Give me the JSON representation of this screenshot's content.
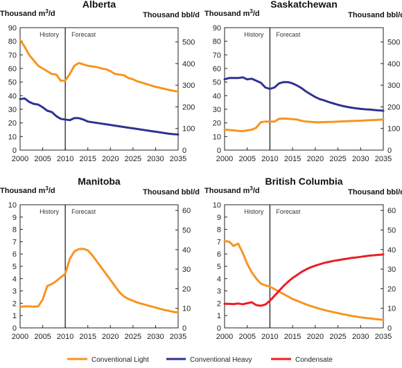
{
  "legend": [
    {
      "name": "Conventional Light",
      "color": "#f7941d"
    },
    {
      "name": "Conventional Heavy",
      "color": "#2e3192"
    },
    {
      "name": "Condensate",
      "color": "#ed1c24"
    }
  ],
  "colors": {
    "light": "#f7941d",
    "heavy": "#2e3192",
    "condensate": "#ed1c24"
  },
  "chart_data": [
    {
      "type": "line",
      "title": "Alberta",
      "left_unit": "Thousand m3/d",
      "right_unit": "Thousand bbl/d",
      "history_label": "History",
      "forecast_label": "Forecast",
      "divider_year": 2010,
      "xlim": [
        2000,
        2035
      ],
      "x_ticks": [
        2000,
        2005,
        2010,
        2015,
        2020,
        2025,
        2030,
        2035
      ],
      "ylim_left": [
        0,
        90
      ],
      "y_ticks_left": [
        0,
        10,
        20,
        30,
        40,
        50,
        60,
        70,
        80,
        90
      ],
      "ylim_right": [
        0,
        566
      ],
      "y_ticks_right": [
        0,
        100,
        200,
        300,
        400,
        500
      ],
      "series": [
        {
          "name": "Conventional Light",
          "color": "#f7941d",
          "x": [
            2000,
            2001,
            2002,
            2003,
            2004,
            2005,
            2006,
            2007,
            2008,
            2009,
            2010,
            2011,
            2012,
            2013,
            2014,
            2015,
            2016,
            2017,
            2018,
            2019,
            2020,
            2021,
            2022,
            2023,
            2024,
            2025,
            2026,
            2027,
            2028,
            2029,
            2030,
            2031,
            2032,
            2033,
            2034,
            2035
          ],
          "y": [
            81,
            76,
            70,
            66,
            62,
            60,
            58,
            56,
            55.5,
            51,
            51,
            56,
            62,
            64,
            63,
            62,
            61.5,
            61,
            60,
            59.5,
            58,
            56,
            55.5,
            55,
            53,
            52,
            50.5,
            49.5,
            48.5,
            47.5,
            46.5,
            45.8,
            45,
            44.2,
            43.5,
            43
          ]
        },
        {
          "name": "Conventional Heavy",
          "color": "#2e3192",
          "x": [
            2000,
            2001,
            2002,
            2003,
            2004,
            2005,
            2006,
            2007,
            2008,
            2009,
            2010,
            2011,
            2012,
            2013,
            2014,
            2015,
            2016,
            2017,
            2018,
            2019,
            2020,
            2021,
            2022,
            2023,
            2024,
            2025,
            2026,
            2027,
            2028,
            2029,
            2030,
            2031,
            2032,
            2033,
            2034,
            2035
          ],
          "y": [
            37.5,
            38,
            35.5,
            34,
            33.5,
            31.5,
            29,
            28,
            25,
            23,
            22.5,
            22,
            23.5,
            23.5,
            22.5,
            21,
            20.5,
            20,
            19.5,
            19,
            18.5,
            18,
            17.5,
            17,
            16.5,
            16,
            15.5,
            15,
            14.5,
            14,
            13.5,
            13,
            12.5,
            12,
            11.7,
            11.5
          ]
        }
      ]
    },
    {
      "type": "line",
      "title": "Saskatchewan",
      "left_unit": "Thousand m3/d",
      "right_unit": "Thousand bbl/d",
      "history_label": "History",
      "forecast_label": "Forecast",
      "divider_year": 2010,
      "xlim": [
        2000,
        2035
      ],
      "x_ticks": [
        2000,
        2005,
        2010,
        2015,
        2020,
        2025,
        2030,
        2035
      ],
      "ylim_left": [
        0,
        90
      ],
      "y_ticks_left": [
        0,
        10,
        20,
        30,
        40,
        50,
        60,
        70,
        80,
        90
      ],
      "ylim_right": [
        0,
        566
      ],
      "y_ticks_right": [
        0,
        100,
        200,
        300,
        400,
        500
      ],
      "series": [
        {
          "name": "Conventional Light",
          "color": "#f7941d",
          "x": [
            2000,
            2001,
            2002,
            2003,
            2004,
            2005,
            2006,
            2007,
            2008,
            2009,
            2010,
            2011,
            2012,
            2013,
            2014,
            2015,
            2016,
            2017,
            2018,
            2019,
            2020,
            2021,
            2022,
            2023,
            2024,
            2025,
            2026,
            2027,
            2028,
            2029,
            2030,
            2031,
            2032,
            2033,
            2034,
            2035
          ],
          "y": [
            15,
            14.8,
            14.5,
            14.2,
            14,
            14.5,
            15,
            16.5,
            20.5,
            21,
            21,
            21,
            23,
            23.2,
            23,
            22.8,
            22.5,
            21.5,
            21,
            20.8,
            20.5,
            20.5,
            20.6,
            20.7,
            20.8,
            21,
            21.1,
            21.2,
            21.4,
            21.5,
            21.6,
            21.8,
            22,
            22.1,
            22.3,
            22.5
          ]
        },
        {
          "name": "Conventional Heavy",
          "color": "#2e3192",
          "x": [
            2000,
            2001,
            2002,
            2003,
            2004,
            2005,
            2006,
            2007,
            2008,
            2009,
            2010,
            2011,
            2012,
            2013,
            2014,
            2015,
            2016,
            2017,
            2018,
            2019,
            2020,
            2021,
            2022,
            2023,
            2024,
            2025,
            2026,
            2027,
            2028,
            2029,
            2030,
            2031,
            2032,
            2033,
            2034,
            2035
          ],
          "y": [
            52,
            53,
            53,
            53,
            53.5,
            52,
            52.5,
            51,
            49.5,
            46,
            45,
            46,
            49,
            50,
            50,
            49,
            47.5,
            45.5,
            43,
            41,
            39,
            37.5,
            36.5,
            35.3,
            34.3,
            33.3,
            32.5,
            31.8,
            31.2,
            30.7,
            30.3,
            30,
            29.8,
            29.5,
            29.2,
            29
          ]
        }
      ]
    },
    {
      "type": "line",
      "title": "Manitoba",
      "left_unit": "Thousand m3/d",
      "right_unit": "Thousand bbl/d",
      "history_label": "History",
      "forecast_label": "Forecast",
      "divider_year": 2010,
      "xlim": [
        2000,
        2035
      ],
      "x_ticks": [
        2000,
        2005,
        2010,
        2015,
        2020,
        2025,
        2030,
        2035
      ],
      "ylim_left": [
        0,
        10
      ],
      "y_ticks_left": [
        0,
        1,
        2,
        3,
        4,
        5,
        6,
        7,
        8,
        9,
        10
      ],
      "ylim_right": [
        0,
        62.9
      ],
      "y_ticks_right": [
        0,
        10,
        20,
        30,
        40,
        50,
        60
      ],
      "series": [
        {
          "name": "Conventional Light",
          "color": "#f7941d",
          "x": [
            2000,
            2001,
            2002,
            2003,
            2004,
            2005,
            2006,
            2007,
            2008,
            2009,
            2010,
            2011,
            2012,
            2013,
            2014,
            2015,
            2016,
            2017,
            2018,
            2019,
            2020,
            2021,
            2022,
            2023,
            2024,
            2025,
            2026,
            2027,
            2028,
            2029,
            2030,
            2031,
            2032,
            2033,
            2034,
            2035
          ],
          "y": [
            1.7,
            1.75,
            1.75,
            1.72,
            1.75,
            2.3,
            3.4,
            3.55,
            3.8,
            4.1,
            4.4,
            5.6,
            6.2,
            6.4,
            6.42,
            6.3,
            5.9,
            5.4,
            4.9,
            4.4,
            3.9,
            3.4,
            2.9,
            2.55,
            2.35,
            2.2,
            2.05,
            1.95,
            1.85,
            1.75,
            1.65,
            1.55,
            1.45,
            1.38,
            1.3,
            1.25
          ]
        }
      ]
    },
    {
      "type": "line",
      "title": "British Columbia",
      "left_unit": "Thousand m3/d",
      "right_unit": "Thousand bbl/d",
      "history_label": "History",
      "forecast_label": "Forecast",
      "divider_year": 2010,
      "xlim": [
        2000,
        2035
      ],
      "x_ticks": [
        2000,
        2005,
        2010,
        2015,
        2020,
        2025,
        2030,
        2035
      ],
      "ylim_left": [
        0,
        10
      ],
      "y_ticks_left": [
        0,
        1,
        2,
        3,
        4,
        5,
        6,
        7,
        8,
        9,
        10
      ],
      "ylim_right": [
        0,
        62.9
      ],
      "y_ticks_right": [
        0,
        10,
        20,
        30,
        40,
        50,
        60
      ],
      "series": [
        {
          "name": "Conventional Light",
          "color": "#f7941d",
          "x": [
            2000,
            2001,
            2002,
            2003,
            2004,
            2005,
            2006,
            2007,
            2008,
            2009,
            2010,
            2011,
            2012,
            2013,
            2014,
            2015,
            2016,
            2017,
            2018,
            2019,
            2020,
            2021,
            2022,
            2023,
            2024,
            2025,
            2026,
            2027,
            2028,
            2029,
            2030,
            2031,
            2032,
            2033,
            2034,
            2035
          ],
          "y": [
            7.05,
            7.0,
            6.65,
            6.85,
            6.1,
            5.2,
            4.5,
            4.0,
            3.6,
            3.45,
            3.35,
            3.15,
            2.95,
            2.75,
            2.55,
            2.35,
            2.2,
            2.05,
            1.9,
            1.78,
            1.65,
            1.55,
            1.45,
            1.36,
            1.28,
            1.2,
            1.12,
            1.05,
            0.98,
            0.92,
            0.86,
            0.81,
            0.77,
            0.73,
            0.69,
            0.65
          ]
        },
        {
          "name": "Condensate",
          "color": "#ed1c24",
          "x": [
            2000,
            2001,
            2002,
            2003,
            2004,
            2005,
            2006,
            2007,
            2008,
            2009,
            2010,
            2011,
            2012,
            2013,
            2014,
            2015,
            2016,
            2017,
            2018,
            2019,
            2020,
            2021,
            2022,
            2023,
            2024,
            2025,
            2026,
            2027,
            2028,
            2029,
            2030,
            2031,
            2032,
            2033,
            2034,
            2035
          ],
          "y": [
            1.95,
            1.95,
            1.93,
            1.98,
            1.92,
            2.0,
            2.08,
            1.85,
            1.8,
            1.9,
            2.2,
            2.6,
            3.0,
            3.4,
            3.75,
            4.05,
            4.3,
            4.55,
            4.75,
            4.92,
            5.05,
            5.17,
            5.28,
            5.36,
            5.44,
            5.5,
            5.56,
            5.62,
            5.68,
            5.72,
            5.77,
            5.82,
            5.87,
            5.9,
            5.93,
            5.96
          ]
        }
      ]
    }
  ]
}
